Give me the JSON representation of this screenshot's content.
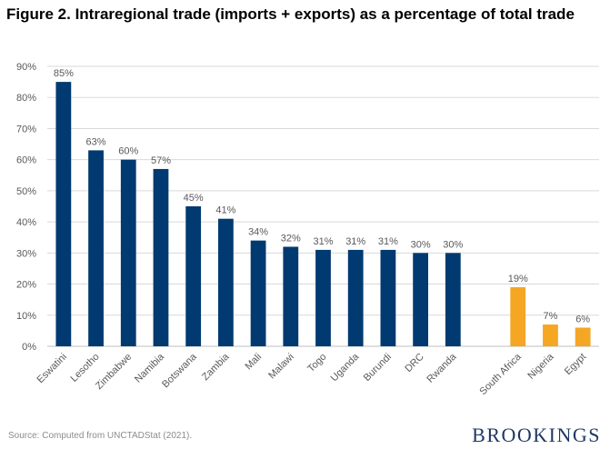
{
  "chart_data": {
    "type": "bar",
    "title": "Figure 2. Intraregional trade (imports + exports) as a percentage of total trade",
    "xlabel": "",
    "ylabel": "",
    "ylim": [
      0,
      90
    ],
    "yticks": [
      "0%",
      "10%",
      "20%",
      "30%",
      "40%",
      "50%",
      "60%",
      "70%",
      "80%",
      "90%"
    ],
    "categories": [
      "Eswatini",
      "Lesotho",
      "Zimbabwe",
      "Namibia",
      "Botswana",
      "Zambia",
      "Mali",
      "Malawi",
      "Togo",
      "Uganda",
      "Burundi",
      "DRC",
      "Rwanda",
      "",
      "South Africa",
      "Nigeria",
      "Egypt"
    ],
    "values": [
      85,
      63,
      60,
      57,
      45,
      41,
      34,
      32,
      31,
      31,
      31,
      30,
      30,
      null,
      19,
      7,
      6
    ],
    "data_labels": [
      "85%",
      "63%",
      "60%",
      "57%",
      "45%",
      "41%",
      "34%",
      "32%",
      "31%",
      "31%",
      "31%",
      "30%",
      "30%",
      "",
      "19%",
      "7%",
      "6%"
    ],
    "grid": true,
    "legend": "none",
    "colors": {
      "primary": "#003a70",
      "highlight": "#f5a623",
      "gridline": "#d9d9d9",
      "axis_text": "#595959"
    },
    "highlight_categories": [
      "South Africa",
      "Nigeria",
      "Egypt"
    ]
  },
  "source": "Source: Computed from UNCTADStat (2021).",
  "brand": "BROOKINGS"
}
